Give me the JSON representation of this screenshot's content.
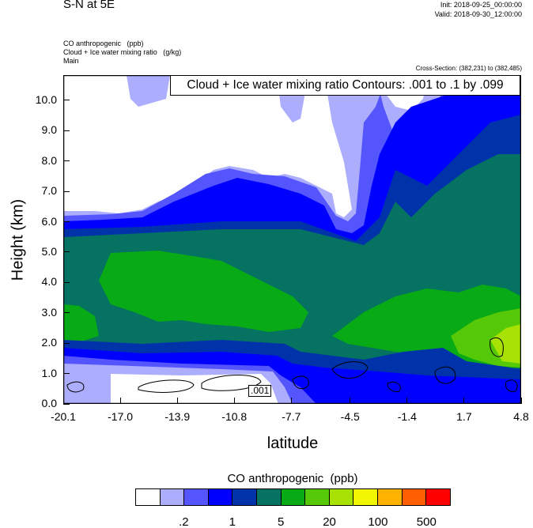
{
  "header": {
    "title": "S-N at 5E",
    "init": "Init: 2018-09-25_00:00:00",
    "valid": "Valid: 2018-09-30_12:00:00"
  },
  "fields": {
    "line1": "CO anthropogenic   (ppb)",
    "line2": "Cloud + Ice water mixing ratio   (g/kg)",
    "line3": "Main"
  },
  "cross_section": "Cross-Section: (382,231) to (382,485)",
  "chart_data": {
    "type": "heatmap",
    "title": "Cloud + Ice water mixing ratio Contours: .001 to .1 by .099",
    "xlabel": "latitude",
    "ylabel": "Height (km)",
    "xlim": [
      -20.1,
      4.8
    ],
    "ylim": [
      0,
      10.83
    ],
    "xticks": [
      "-20.1",
      "-17.0",
      "-13.9",
      "-10.8",
      "-7.7",
      "-4.5",
      "-1.4",
      "1.7",
      "4.8"
    ],
    "yticks": [
      "0.0",
      "1.0",
      "2.0",
      "3.0",
      "4.0",
      "5.0",
      "6.0",
      "7.0",
      "8.0",
      "9.0",
      "10.0"
    ],
    "contour_label": ".001",
    "colorbar": {
      "title": "CO anthropogenic  (ppb)",
      "labels": [
        ".2",
        "1",
        "5",
        "20",
        "100",
        "500"
      ],
      "colors": [
        "#fefefe",
        "#adadfe",
        "#5555fe",
        "#0000fe",
        "#0033aa",
        "#057262",
        "#08aa15",
        "#55c808",
        "#a8e205",
        "#f2f701",
        "#ffb200",
        "#ff5f00",
        "#fe0000"
      ]
    }
  }
}
